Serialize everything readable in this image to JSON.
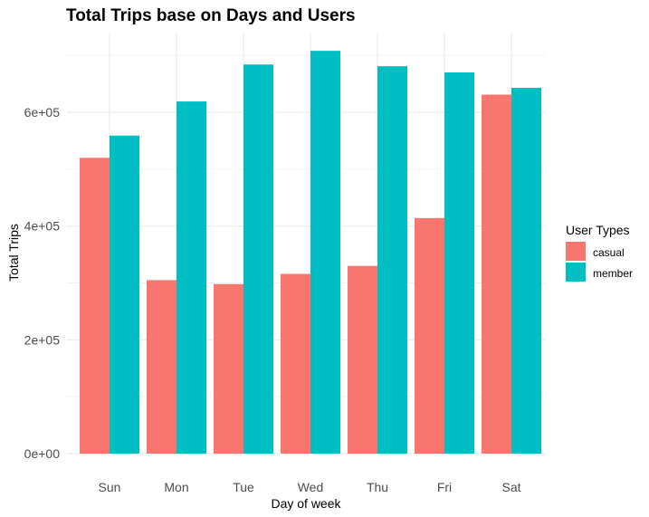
{
  "chart_data": {
    "type": "bar",
    "title": "Total Trips base on Days and Users",
    "xlabel": "Day of week",
    "ylabel": "Total Trips",
    "categories": [
      "Sun",
      "Mon",
      "Tue",
      "Wed",
      "Thu",
      "Fri",
      "Sat"
    ],
    "series": [
      {
        "name": "casual",
        "color": "#F8766D",
        "values": [
          520000,
          305000,
          298000,
          316000,
          330000,
          414000,
          631000
        ]
      },
      {
        "name": "member",
        "color": "#00BFC4",
        "values": [
          559000,
          619000,
          684000,
          708000,
          681000,
          670000,
          643000
        ]
      }
    ],
    "ylim": [
      0,
      720000
    ],
    "yticks": [
      0,
      200000,
      400000,
      600000
    ],
    "ytick_labels": [
      "0e+00",
      "2e+05",
      "4e+05",
      "6e+05"
    ],
    "grid": true,
    "legend": {
      "title": "User Types",
      "position": "right"
    }
  }
}
